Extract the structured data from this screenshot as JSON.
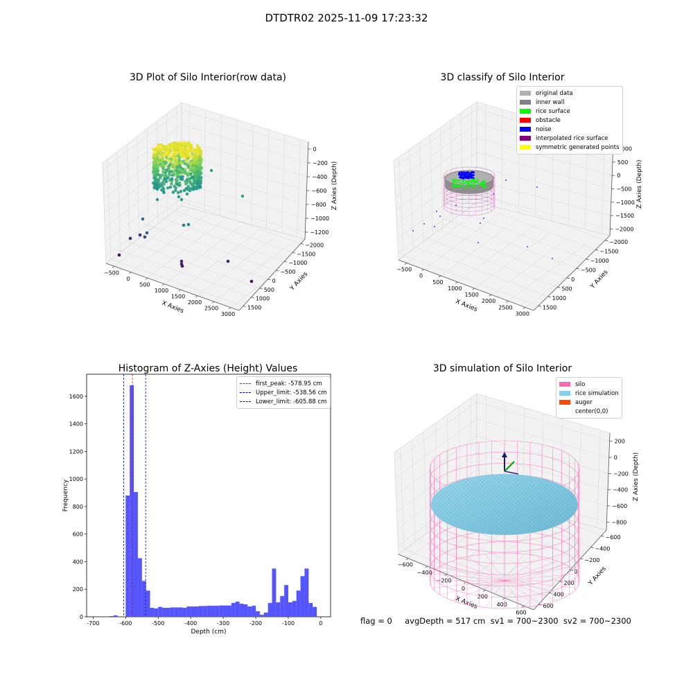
{
  "suptitle": "DTDTR02 2025-11-09 17:23:32",
  "colors": {
    "hist_bar": "#5555ff",
    "first_peak": "#ff0000",
    "limit": "#0000aa",
    "pane": "#f2f2f2",
    "grid": "#dddddd",
    "silo": "#ff69b4",
    "rice": "#87cefa"
  },
  "chart_data": [
    {
      "type": "scatter",
      "id": "raw",
      "title": "3D Plot of Silo Interior(row data)",
      "xlabel": "X Axies",
      "ylabel": "Y Axies",
      "zlabel": "Z Axies (Depth)",
      "x_ticks": [
        "−500",
        "0",
        "500",
        "1000",
        "1500",
        "2000",
        "2500",
        "3000"
      ],
      "y_ticks": [
        "−2000",
        "−1500",
        "−1000",
        "−500",
        "0",
        "500",
        "1000",
        "1500"
      ],
      "z_ticks": [
        "−1200",
        "−1000",
        "−800",
        "−600",
        "−400",
        "−200",
        "0"
      ],
      "colormap": "viridis",
      "outlier_points": [
        {
          "x": -450,
          "y": 1400,
          "z": -1300
        },
        {
          "x": 200,
          "y": 1000,
          "z": -1050
        },
        {
          "x": 400,
          "y": 800,
          "z": -900
        },
        {
          "x": 1300,
          "y": 200,
          "z": -1350
        },
        {
          "x": 2600,
          "y": -1200,
          "z": -1400
        },
        {
          "x": 1500,
          "y": -300,
          "z": -600
        }
      ]
    },
    {
      "type": "scatter",
      "id": "classify",
      "title": "3D classify of Silo Interior",
      "xlabel": "X Axies",
      "ylabel": "Y Axies",
      "zlabel": "Z Axies (Depth)",
      "x_ticks": [
        "−500",
        "0",
        "500",
        "1000",
        "1500",
        "2000",
        "2500",
        "3000"
      ],
      "y_ticks": [
        "−2000",
        "−1500",
        "−1000",
        "−500",
        "0",
        "500",
        "1000",
        "1500"
      ],
      "z_ticks": [
        "−2000",
        "−1500",
        "−1000",
        "−500",
        "0",
        "500",
        "1000"
      ],
      "legend": [
        {
          "label": "original data",
          "color": "#b0b0b0"
        },
        {
          "label": "inner wall",
          "color": "#808080"
        },
        {
          "label": "rice surface",
          "color": "#00ff00"
        },
        {
          "label": "obstacle",
          "color": "#ff0000"
        },
        {
          "label": "noise",
          "color": "#0000ff"
        },
        {
          "label": "interpolated rice surface",
          "color": "#800080"
        },
        {
          "label": "symmetric generated points",
          "color": "#ffff00"
        }
      ]
    },
    {
      "type": "bar",
      "id": "hist",
      "title": "Histogram of Z-Axies (Height) Values",
      "xlabel": "Depth (cm)",
      "ylabel": "Frequency",
      "xlim": [
        -720,
        30
      ],
      "ylim": [
        0,
        1760
      ],
      "x_ticks": [
        -700,
        -600,
        -500,
        -400,
        -300,
        -200,
        -100,
        0
      ],
      "y_ticks": [
        0,
        200,
        400,
        600,
        800,
        1000,
        1200,
        1400,
        1600
      ],
      "bin_width": 12.5,
      "bins": [
        {
          "x": -650,
          "count": 5
        },
        {
          "x": -637.5,
          "count": 10
        },
        {
          "x": -612.5,
          "count": 3
        },
        {
          "x": -600,
          "count": 880
        },
        {
          "x": -587.5,
          "count": 1680
        },
        {
          "x": -575,
          "count": 905
        },
        {
          "x": -562.5,
          "count": 425
        },
        {
          "x": -550,
          "count": 260
        },
        {
          "x": -537.5,
          "count": 190
        },
        {
          "x": -525,
          "count": 65
        },
        {
          "x": -512.5,
          "count": 60
        },
        {
          "x": -500,
          "count": 72
        },
        {
          "x": -487.5,
          "count": 65
        },
        {
          "x": -475,
          "count": 65
        },
        {
          "x": -462.5,
          "count": 68
        },
        {
          "x": -450,
          "count": 68
        },
        {
          "x": -437.5,
          "count": 68
        },
        {
          "x": -425,
          "count": 65
        },
        {
          "x": -412.5,
          "count": 75
        },
        {
          "x": -400,
          "count": 75
        },
        {
          "x": -387.5,
          "count": 75
        },
        {
          "x": -375,
          "count": 78
        },
        {
          "x": -362.5,
          "count": 78
        },
        {
          "x": -350,
          "count": 80
        },
        {
          "x": -337.5,
          "count": 80
        },
        {
          "x": -325,
          "count": 80
        },
        {
          "x": -312.5,
          "count": 82
        },
        {
          "x": -300,
          "count": 82
        },
        {
          "x": -287.5,
          "count": 82
        },
        {
          "x": -275,
          "count": 100
        },
        {
          "x": -262.5,
          "count": 110
        },
        {
          "x": -250,
          "count": 95
        },
        {
          "x": -237.5,
          "count": 90
        },
        {
          "x": -225,
          "count": 75
        },
        {
          "x": -212.5,
          "count": 80
        },
        {
          "x": -200,
          "count": 40
        },
        {
          "x": -187.5,
          "count": 15
        },
        {
          "x": -175,
          "count": 30
        },
        {
          "x": -162.5,
          "count": 100
        },
        {
          "x": -150,
          "count": 350
        },
        {
          "x": -137.5,
          "count": 105
        },
        {
          "x": -125,
          "count": 150
        },
        {
          "x": -112.5,
          "count": 230
        },
        {
          "x": -100,
          "count": 105
        },
        {
          "x": -87.5,
          "count": 115
        },
        {
          "x": -75,
          "count": 190
        },
        {
          "x": -62.5,
          "count": 295
        },
        {
          "x": -50,
          "count": 350
        },
        {
          "x": -37.5,
          "count": 100
        },
        {
          "x": -25,
          "count": 72
        }
      ],
      "vlines": [
        {
          "label": "first_peak: -578.95 cm",
          "x": -578.95,
          "color": "#ff0000"
        },
        {
          "label": "Upper_limit: -538.56 cm",
          "x": -538.56,
          "color": "#0000aa"
        },
        {
          "label": "Lower_limit: -605.88 cm",
          "x": -605.88,
          "color": "#0000aa"
        }
      ]
    },
    {
      "type": "scatter",
      "id": "sim",
      "title": "3D simulation of Silo Interior",
      "xlabel": "X Axies",
      "ylabel": "Y Axies",
      "zlabel": "Z Axies (Depth)",
      "x_ticks": [
        "−600",
        "−400",
        "−200",
        "0",
        "200",
        "400",
        "600"
      ],
      "y_ticks": [
        "−600",
        "−400",
        "−200",
        "0",
        "200",
        "400",
        "600"
      ],
      "z_ticks": [
        "−800",
        "−600",
        "−400",
        "−200",
        "0",
        "200"
      ],
      "legend": [
        {
          "label": "silo",
          "color": "#ff69b4"
        },
        {
          "label": "rice simulation",
          "color": "#87ceeb"
        },
        {
          "label": "auger",
          "color": "#ff4500"
        },
        {
          "label": "center(0,0)",
          "color": "#ffffff"
        }
      ]
    }
  ],
  "status": {
    "text": "flag = 0     avgDepth = 517 cm  sv1 = 700~2300  sv2 = 700~2300"
  }
}
